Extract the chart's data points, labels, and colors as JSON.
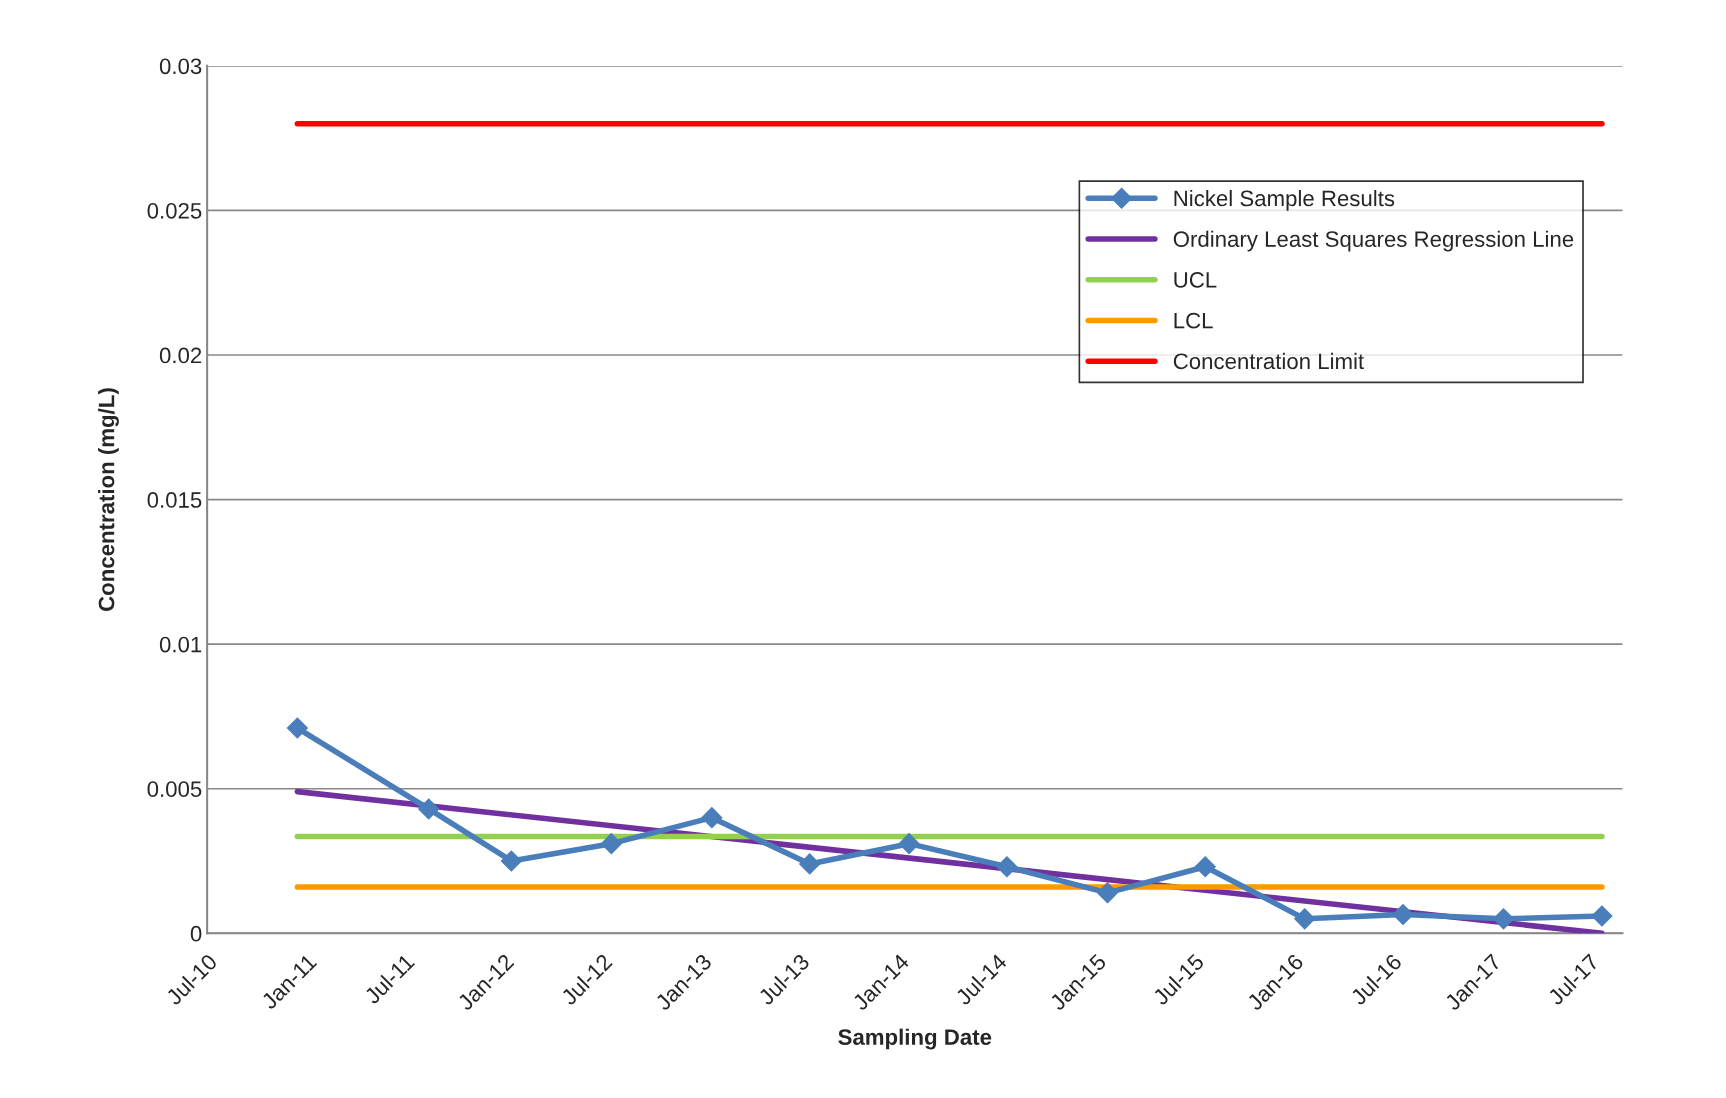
{
  "chart_data": {
    "type": "line",
    "xlabel": "Sampling Date",
    "ylabel": "Concentration (mg/L)",
    "xlim": [
      "2010-07-01",
      "2017-09-01"
    ],
    "xticks": [
      {
        "value": "2010-07-01",
        "label": "Jul-10"
      },
      {
        "value": "2011-01-01",
        "label": "Jan-11"
      },
      {
        "value": "2011-07-01",
        "label": "Jul-11"
      },
      {
        "value": "2012-01-01",
        "label": "Jan-12"
      },
      {
        "value": "2012-07-01",
        "label": "Jul-12"
      },
      {
        "value": "2013-01-01",
        "label": "Jan-13"
      },
      {
        "value": "2013-07-01",
        "label": "Jul-13"
      },
      {
        "value": "2014-01-01",
        "label": "Jan-14"
      },
      {
        "value": "2014-07-01",
        "label": "Jul-14"
      },
      {
        "value": "2015-01-01",
        "label": "Jan-15"
      },
      {
        "value": "2015-07-01",
        "label": "Jul-15"
      },
      {
        "value": "2016-01-01",
        "label": "Jan-16"
      },
      {
        "value": "2016-07-01",
        "label": "Jul-16"
      },
      {
        "value": "2017-01-01",
        "label": "Jan-17"
      },
      {
        "value": "2017-07-01",
        "label": "Jul-17"
      }
    ],
    "ylim": [
      0,
      0.03
    ],
    "yticks": [
      0,
      0.005,
      0.01,
      0.015,
      0.02,
      0.025,
      0.03
    ],
    "grid": "y",
    "legend": "top right",
    "series": [
      {
        "name": "Nickel Sample Results",
        "color": "#4a7ebb",
        "marker": "diamond",
        "x": [
          "2010-12-15",
          "2011-08-15",
          "2012-01-15",
          "2012-07-18",
          "2013-01-20",
          "2013-07-20",
          "2014-01-20",
          "2014-07-20",
          "2015-01-22",
          "2015-07-22",
          "2016-01-22",
          "2016-07-22",
          "2017-01-24",
          "2017-07-25"
        ],
        "values": [
          0.0071,
          0.0043,
          0.0025,
          0.0031,
          0.004,
          0.0024,
          0.0031,
          0.0023,
          0.0014,
          0.0023,
          0.0005,
          0.00065,
          0.0005,
          0.0006
        ]
      },
      {
        "name": "Ordinary Least Squares Regression Line",
        "color": "#7030a0",
        "marker": "none",
        "x": [
          "2010-12-15",
          "2017-07-25"
        ],
        "values": [
          0.0049,
          0
        ]
      },
      {
        "name": "UCL",
        "color": "#92d050",
        "marker": "none",
        "x": [
          "2010-12-15",
          "2017-07-25"
        ],
        "values": [
          0.00335,
          0.00335
        ]
      },
      {
        "name": "LCL",
        "color": "#ff9900",
        "marker": "none",
        "x": [
          "2010-12-15",
          "2017-07-25"
        ],
        "values": [
          0.0016,
          0.0016
        ]
      },
      {
        "name": "Concentration Limit",
        "color": "#ff0000",
        "marker": "none",
        "x": [
          "2010-12-15",
          "2017-07-25"
        ],
        "values": [
          0.028,
          0.028
        ]
      }
    ]
  }
}
